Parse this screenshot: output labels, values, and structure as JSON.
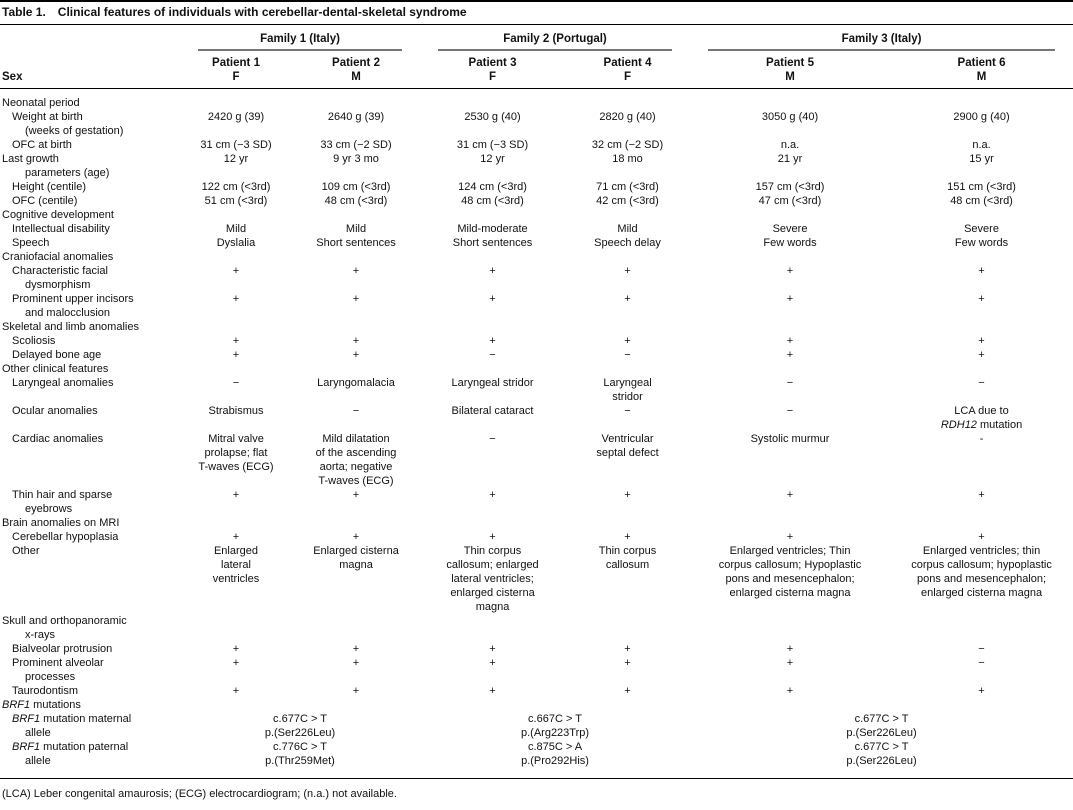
{
  "title": {
    "label": "Table 1.",
    "text": "Clinical features of individuals with cerebellar-dental-skeletal syndrome"
  },
  "header": {
    "row_label": "Sex",
    "families": [
      {
        "name": "Family 1 (Italy)",
        "patients": [
          {
            "name": "Patient 1",
            "sex": "F"
          },
          {
            "name": "Patient 2",
            "sex": "M"
          }
        ]
      },
      {
        "name": "Family 2 (Portugal)",
        "patients": [
          {
            "name": "Patient 3",
            "sex": "F"
          },
          {
            "name": "Patient 4",
            "sex": "F"
          }
        ]
      },
      {
        "name": "Family 3 (Italy)",
        "patients": [
          {
            "name": "Patient 5",
            "sex": "M"
          },
          {
            "name": "Patient 6",
            "sex": "M"
          }
        ]
      }
    ]
  },
  "rows": [
    {
      "type": "section",
      "indent": 0,
      "label": "Neonatal period"
    },
    {
      "type": "data",
      "indent": 1,
      "label": "Weight at birth",
      "label2": "(weeks of gestation)",
      "values": [
        "2420 g (39)",
        "2640 g (39)",
        "2530 g (40)",
        "2820 g (40)",
        "3050 g (40)",
        "2900 g (40)"
      ]
    },
    {
      "type": "data",
      "indent": 1,
      "label": "OFC at birth",
      "values": [
        "31 cm (−3 SD)",
        "33 cm (−2 SD)",
        "31 cm (−3 SD)",
        "32 cm (−2 SD)",
        "n.a.",
        "n.a."
      ]
    },
    {
      "type": "data",
      "indent": 0,
      "label": "Last growth",
      "label2": "parameters (age)",
      "values": [
        "12 yr",
        "9 yr 3 mo",
        "12 yr",
        "18 mo",
        "21 yr",
        "15 yr"
      ]
    },
    {
      "type": "data",
      "indent": 1,
      "label": "Height (centile)",
      "values": [
        "122 cm (<3rd)",
        "109 cm (<3rd)",
        "124 cm (<3rd)",
        "71 cm (<3rd)",
        "157 cm (<3rd)",
        "151 cm (<3rd)"
      ]
    },
    {
      "type": "data",
      "indent": 1,
      "label": "OFC (centile)",
      "values": [
        "51 cm (<3rd)",
        "48 cm (<3rd)",
        "48 cm (<3rd)",
        "42 cm (<3rd)",
        "47 cm (<3rd)",
        "48 cm (<3rd)"
      ]
    },
    {
      "type": "section",
      "indent": 0,
      "label": "Cognitive development"
    },
    {
      "type": "data",
      "indent": 1,
      "label": "Intellectual disability",
      "values": [
        "Mild",
        "Mild",
        "Mild-moderate",
        "Mild",
        "Severe",
        "Severe"
      ]
    },
    {
      "type": "data",
      "indent": 1,
      "label": "Speech",
      "values": [
        "Dyslalia",
        "Short sentences",
        "Short sentences",
        "Speech delay",
        "Few words",
        "Few words"
      ]
    },
    {
      "type": "section",
      "indent": 0,
      "label": "Craniofacial anomalies"
    },
    {
      "type": "data",
      "indent": 1,
      "label": "Characteristic facial",
      "label2": "dysmorphism",
      "values": [
        "+",
        "+",
        "+",
        "+",
        "+",
        "+"
      ]
    },
    {
      "type": "data",
      "indent": 1,
      "label": "Prominent upper incisors",
      "label2": "and malocclusion",
      "values": [
        "+",
        "+",
        "+",
        "+",
        "+",
        "+"
      ]
    },
    {
      "type": "section",
      "indent": 0,
      "label": "Skeletal and limb anomalies"
    },
    {
      "type": "data",
      "indent": 1,
      "label": "Scoliosis",
      "values": [
        "+",
        "+",
        "+",
        "+",
        "+",
        "+"
      ]
    },
    {
      "type": "data",
      "indent": 1,
      "label": "Delayed bone age",
      "values": [
        "+",
        "+",
        "−",
        "−",
        "+",
        "+"
      ]
    },
    {
      "type": "section",
      "indent": 0,
      "label": "Other clinical features"
    },
    {
      "type": "data",
      "indent": 1,
      "label": "Laryngeal anomalies",
      "values": [
        "−",
        "Laryngomalacia",
        "Laryngeal stridor",
        "Laryngeal\nstridor",
        "−",
        "−"
      ]
    },
    {
      "type": "data",
      "indent": 1,
      "label": "Ocular anomalies",
      "values": [
        "Strabismus",
        "−",
        "Bilateral cataract",
        "−",
        "−",
        "LCA due to\n*RDH12* mutation"
      ]
    },
    {
      "type": "data",
      "indent": 1,
      "label": "Cardiac anomalies",
      "values": [
        "Mitral valve\nprolapse; flat\nT-waves (ECG)",
        "Mild dilatation\nof the ascending\naorta; negative\nT-waves (ECG)",
        "−",
        "Ventricular\nseptal defect",
        "Systolic murmur",
        "-"
      ]
    },
    {
      "type": "data",
      "indent": 1,
      "label": "Thin hair and sparse",
      "label2": "eyebrows",
      "values": [
        "+",
        "+",
        "+",
        "+",
        "+",
        "+"
      ]
    },
    {
      "type": "section",
      "indent": 0,
      "label": "Brain anomalies on MRI"
    },
    {
      "type": "data",
      "indent": 1,
      "label": "Cerebellar hypoplasia",
      "values": [
        "+",
        "+",
        "+",
        "+",
        "+",
        "+"
      ]
    },
    {
      "type": "data",
      "indent": 1,
      "label": "Other",
      "values": [
        "Enlarged\nlateral\nventricles",
        "Enlarged cisterna\nmagna",
        "Thin corpus\ncallosum; enlarged\nlateral ventricles;\nenlarged cisterna\nmagna",
        "Thin corpus\ncallosum",
        "Enlarged ventricles; Thin\ncorpus callosum; Hypoplastic\npons and mesencephalon;\nenlarged cisterna magna",
        "Enlarged ventricles; thin\ncorpus callosum; hypoplastic\npons and mesencephalon;\nenlarged cisterna magna"
      ]
    },
    {
      "type": "section",
      "indent": 0,
      "label": "Skull and orthopanoramic",
      "label2": "x-rays"
    },
    {
      "type": "data",
      "indent": 1,
      "label": "Bialveolar protrusion",
      "values": [
        "+",
        "+",
        "+",
        "+",
        "+",
        "−"
      ]
    },
    {
      "type": "data",
      "indent": 1,
      "label": "Prominent alveolar",
      "label2": "processes",
      "values": [
        "+",
        "+",
        "+",
        "+",
        "+",
        "−"
      ]
    },
    {
      "type": "data",
      "indent": 1,
      "label": "Taurodontism",
      "values": [
        "+",
        "+",
        "+",
        "+",
        "+",
        "+"
      ]
    },
    {
      "type": "section",
      "indent": 0,
      "label": "*BRF1* mutations"
    },
    {
      "type": "family-data",
      "indent": 1,
      "label": "*BRF1* mutation maternal",
      "label2": "allele",
      "family_values": [
        "c.677C > T\np.(Ser226Leu)",
        "c.667C > T\np.(Arg223Trp)",
        "c.677C > T\np.(Ser226Leu)"
      ]
    },
    {
      "type": "family-data",
      "indent": 1,
      "label": "*BRF1* mutation paternal",
      "label2": "allele",
      "family_values": [
        "c.776C > T\np.(Thr259Met)",
        "c.875C > A\np.(Pro292His)",
        "c.677C > T\np.(Ser226Leu)"
      ]
    }
  ],
  "footnote": "(LCA) Leber congenital amaurosis; (ECG) electrocardiogram; (n.a.) not available.",
  "colors": {
    "text": "#111111",
    "rule": "#000000",
    "family_rule": "#767676",
    "background": "#ffffff"
  }
}
